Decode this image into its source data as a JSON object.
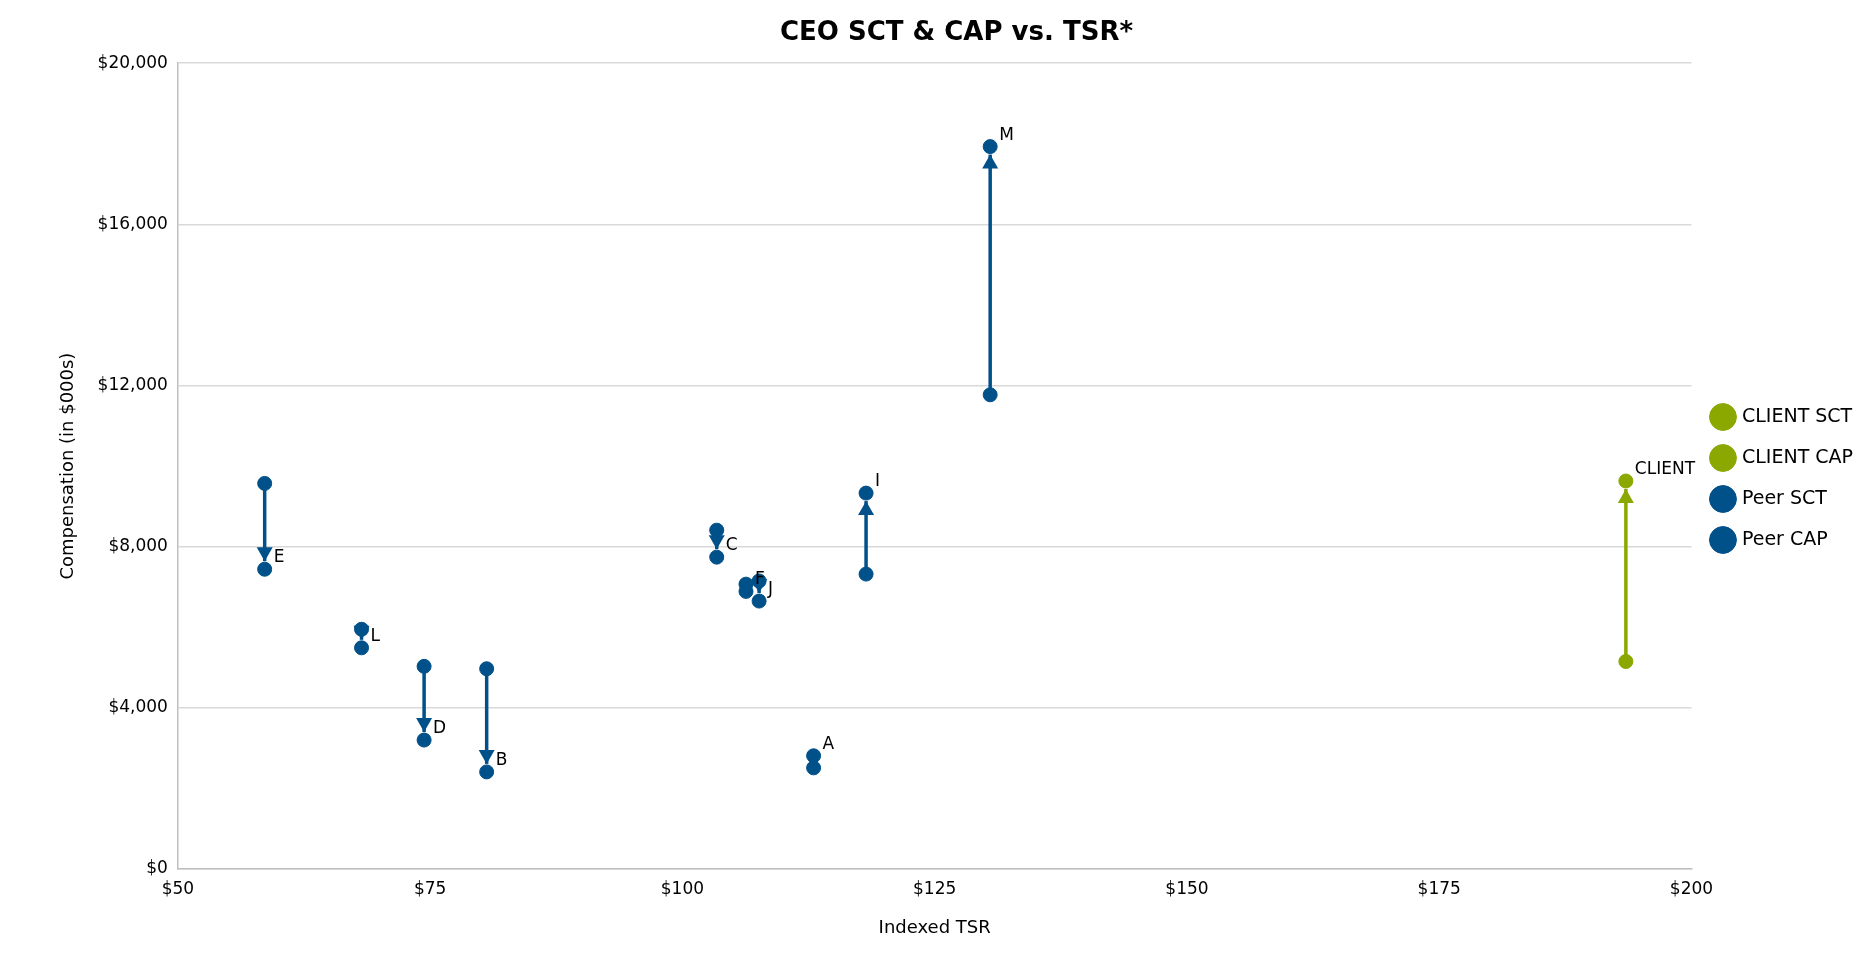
{
  "chart_data": {
    "type": "scatter",
    "title": "CEO SCT & CAP vs. TSR*",
    "xlabel": "Indexed TSR",
    "ylabel": "Compensation (in $000s)",
    "series": [
      {
        "name": "CLIENT SCT",
        "color": "#8aa800",
        "x": [
          193.5
        ],
        "values": [
          5150
        ]
      },
      {
        "name": "CLIENT CAP",
        "color": "#8aa800",
        "x": [
          193.5
        ],
        "values": [
          9630
        ]
      },
      {
        "name": "Peer SCT",
        "color": "#00508a",
        "x": [
          58.6,
          68.2,
          74.4,
          80.6,
          103.4,
          106.3,
          107.6,
          118.2,
          113.0,
          130.5
        ],
        "values": [
          9570,
          5950,
          5030,
          4970,
          8410,
          7070,
          7150,
          7320,
          2810,
          11770
        ]
      },
      {
        "name": "Peer CAP",
        "color": "#00508a",
        "x": [
          58.6,
          68.2,
          74.4,
          80.6,
          103.4,
          106.3,
          107.6,
          118.2,
          113.0,
          130.5
        ],
        "values": [
          7440,
          5490,
          3200,
          2410,
          7740,
          6890,
          6650,
          9330,
          2510,
          17930
        ]
      }
    ],
    "annotations": [
      {
        "text": "E",
        "x": 58.6,
        "y": 7440
      },
      {
        "text": "L",
        "x": 68.2,
        "y": 5490
      },
      {
        "text": "D",
        "x": 74.4,
        "y": 3200
      },
      {
        "text": "B",
        "x": 80.6,
        "y": 2410
      },
      {
        "text": "C",
        "x": 103.4,
        "y": 7740
      },
      {
        "text": "F",
        "x": 106.3,
        "y": 6890
      },
      {
        "text": "J",
        "x": 107.6,
        "y": 6650
      },
      {
        "text": "A",
        "x": 113.0,
        "y": 2810
      },
      {
        "text": "I",
        "x": 118.2,
        "y": 9330
      },
      {
        "text": "M",
        "x": 130.5,
        "y": 17930
      },
      {
        "text": "CLIENT",
        "x": 193.5,
        "y": 9630
      }
    ],
    "xlim": [
      50,
      200
    ],
    "ylim": [
      0,
      20000
    ],
    "xticks": [
      {
        "value": 50,
        "label": "$50"
      },
      {
        "value": 75,
        "label": "$75"
      },
      {
        "value": 100,
        "label": "$100"
      },
      {
        "value": 125,
        "label": "$125"
      },
      {
        "value": 150,
        "label": "$150"
      },
      {
        "value": 175,
        "label": "$175"
      },
      {
        "value": 200,
        "label": "$200"
      }
    ],
    "yticks": [
      {
        "value": 0,
        "label": "$0"
      },
      {
        "value": 4000,
        "label": "$4,000"
      },
      {
        "value": 8000,
        "label": "$8,000"
      },
      {
        "value": 12000,
        "label": "$12,000"
      },
      {
        "value": 16000,
        "label": "$16,000"
      },
      {
        "value": 20000,
        "label": "$20,000"
      }
    ],
    "grid": "y",
    "legend": "right",
    "marker": "circle"
  }
}
